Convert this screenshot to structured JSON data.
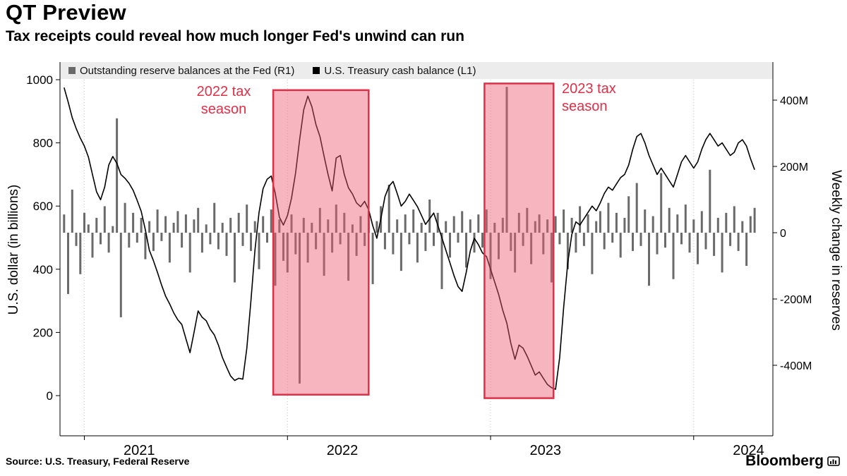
{
  "chart_data": {
    "type": "mixed",
    "title": "QT Preview",
    "subtitle": "Tax receipts could reveal how much longer Fed's unwind can run",
    "x": {
      "start": 2020.9,
      "step": 0.02,
      "domain": [
        2020.88,
        2024.39
      ],
      "ticks": [
        2021,
        2022,
        2023,
        2024
      ],
      "tick_label_offset": 0.27
    },
    "left_axis": {
      "label": "U.S. dollar (in billions)",
      "ticks": [
        1000,
        800,
        600,
        400,
        200,
        0
      ],
      "range": [
        0,
        1000
      ],
      "applies_to": "U.S. Treasury cash balance (L1)"
    },
    "right_axis": {
      "label": "Weekly change in reserves",
      "tick_labels": [
        "400M",
        "200M",
        "0",
        "-200M",
        "-400M"
      ],
      "tick_values": [
        400,
        200,
        0,
        -200,
        -400
      ],
      "range": [
        -490,
        460
      ],
      "applies_to": "Outstanding reserve balances at the Fed (R1)"
    },
    "series": [
      {
        "name": "Outstanding reserve balances at the Fed",
        "axis": "R1",
        "type": "bar",
        "color": "#6a6a6a",
        "units": "weekly change, millions",
        "values": [
          55,
          -185,
          130,
          -40,
          -125,
          60,
          25,
          -75,
          45,
          -35,
          80,
          -60,
          20,
          345,
          -255,
          90,
          -45,
          60,
          -30,
          45,
          -80,
          35,
          -55,
          70,
          -25,
          50,
          -90,
          30,
          65,
          -45,
          55,
          -120,
          40,
          75,
          -60,
          25,
          -35,
          90,
          -50,
          30,
          -70,
          45,
          -150,
          60,
          -40,
          85,
          -55,
          35,
          -110,
          50,
          -30,
          70,
          -160,
          40,
          -85,
          -120,
          55,
          -65,
          -455,
          45,
          -90,
          30,
          -50,
          75,
          -130,
          40,
          -60,
          85,
          -35,
          60,
          -145,
          25,
          -70,
          50,
          -40,
          65,
          -155,
          35,
          80,
          -50,
          145,
          -65,
          40,
          -115,
          55,
          -35,
          70,
          -90,
          30,
          -55,
          100,
          -40,
          60,
          -170,
          35,
          -75,
          50,
          -30,
          65,
          -105,
          40,
          -60,
          55,
          -45,
          70,
          -140,
          30,
          -80,
          45,
          440,
          -55,
          -120,
          60,
          -40,
          75,
          -95,
          35,
          55,
          -65,
          40,
          -150,
          50,
          -35,
          70,
          -110,
          45,
          -60,
          80,
          -40,
          55,
          -125,
          35,
          65,
          -50,
          90,
          -30,
          60,
          -75,
          45,
          110,
          -55,
          150,
          -40,
          70,
          -160,
          50,
          -65,
          180,
          -45,
          75,
          -140,
          55,
          -35,
          85,
          -60,
          40,
          -95,
          65,
          -50,
          190,
          -70,
          45,
          -120,
          60,
          -40,
          80,
          -55,
          35,
          -100,
          50,
          75
        ]
      },
      {
        "name": "U.S. Treasury cash balance",
        "axis": "L1",
        "type": "line",
        "color": "#000000",
        "units": "USD billions",
        "values": [
          975,
          930,
          880,
          845,
          815,
          790,
          755,
          700,
          645,
          620,
          660,
          730,
          757,
          735,
          700,
          688,
          672,
          650,
          618,
          583,
          525,
          460,
          427,
          390,
          350,
          315,
          290,
          262,
          240,
          225,
          180,
          136,
          200,
          268,
          248,
          237,
          210,
          192,
          160,
          120,
          90,
          62,
          48,
          55,
          52,
          150,
          300,
          460,
          580,
          655,
          685,
          695,
          640,
          565,
          540,
          570,
          625,
          705,
          810,
          905,
          948,
          915,
          858,
          820,
          758,
          700,
          648,
          752,
          760,
          700,
          658,
          638,
          610,
          598,
          615,
          588,
          538,
          498,
          560,
          630,
          663,
          678,
          640,
          600,
          615,
          638,
          618,
          598,
          570,
          542,
          560,
          578,
          540,
          500,
          460,
          420,
          380,
          345,
          330,
          390,
          458,
          498,
          478,
          452,
          440,
          400,
          360,
          320,
          270,
          230,
          165,
          115,
          160,
          150,
          125,
          95,
          65,
          75,
          55,
          35,
          25,
          20,
          120,
          280,
          420,
          510,
          550,
          540,
          560,
          580,
          600,
          585,
          610,
          640,
          660,
          650,
          670,
          690,
          700,
          730,
          780,
          820,
          830,
          800,
          760,
          730,
          700,
          720,
          700,
          680,
          660,
          700,
          740,
          760,
          740,
          720,
          740,
          780,
          810,
          830,
          810,
          790,
          800,
          780,
          760,
          770,
          800,
          810,
          790,
          750,
          715
        ]
      }
    ],
    "highlights": [
      {
        "label": "2022 tax season",
        "t0": 2021.93,
        "t1": 2022.4,
        "top_value": 967,
        "bottom_value": 3,
        "fill": "rgba(238,92,112,0.45)",
        "stroke": "#e03048"
      },
      {
        "label": "2023 tax season",
        "t0": 2022.97,
        "t1": 2023.31,
        "top_value": 988,
        "bottom_value": -8,
        "fill": "rgba(238,92,112,0.45)",
        "stroke": "#e03048"
      }
    ],
    "grid": {
      "vertical_dotted_at_year_boundaries": true,
      "horizontal": false
    },
    "legend_position": "top"
  },
  "legend": {
    "items": [
      {
        "label": "Outstanding reserve balances at the Fed (R1)",
        "color": "#6a6a6a"
      },
      {
        "label": "U.S. Treasury cash balance (L1)",
        "color": "#000000"
      }
    ]
  },
  "annotations": [
    {
      "lines": [
        "2022 tax",
        "season"
      ],
      "color": "#df3048"
    },
    {
      "lines": [
        "2023 tax",
        "season"
      ],
      "color": "#df3048"
    }
  ],
  "footer": {
    "source": "Source: U.S. Treasury, Federal Reserve",
    "brand": "Bloomberg"
  }
}
